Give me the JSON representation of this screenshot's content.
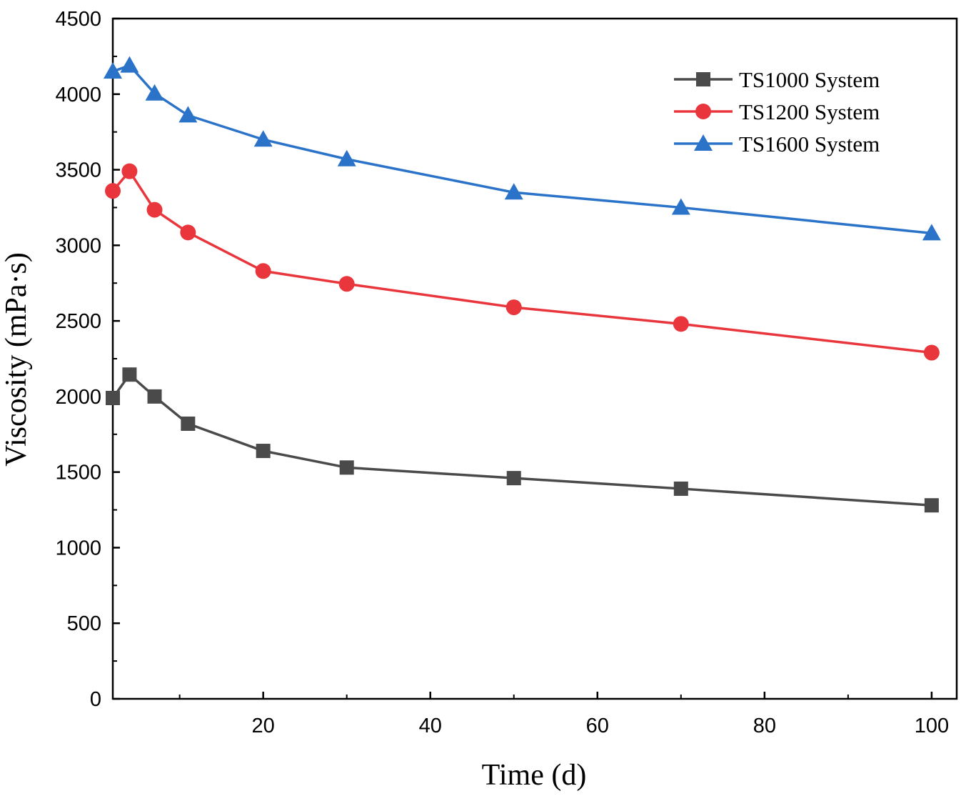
{
  "chart_data": {
    "type": "line",
    "title": "",
    "xlabel": "Time (d)",
    "ylabel": "Viscosity (mPa·s)",
    "xlim": [
      2,
      103
    ],
    "ylim": [
      0,
      4500
    ],
    "xticks": [
      20,
      40,
      60,
      80,
      100
    ],
    "yticks": [
      0,
      500,
      1000,
      1500,
      2000,
      2500,
      3000,
      3500,
      4000,
      4500
    ],
    "grid": false,
    "legend_position": "top-right",
    "x": [
      2,
      4,
      7,
      11,
      20,
      30,
      50,
      70,
      100
    ],
    "series": [
      {
        "name": "TS1000 System",
        "color": "#4a4a4a",
        "marker": "square",
        "values": [
          1990,
          2145,
          2000,
          1820,
          1640,
          1530,
          1460,
          1390,
          1280
        ]
      },
      {
        "name": "TS1200 System",
        "color": "#e8363c",
        "marker": "circle",
        "values": [
          3360,
          3490,
          3235,
          3085,
          2830,
          2745,
          2590,
          2480,
          2290
        ]
      },
      {
        "name": "TS1600 System",
        "color": "#2b73c9",
        "marker": "triangle",
        "values": [
          4150,
          4190,
          4005,
          3860,
          3700,
          3570,
          3350,
          3250,
          3080
        ]
      }
    ]
  }
}
